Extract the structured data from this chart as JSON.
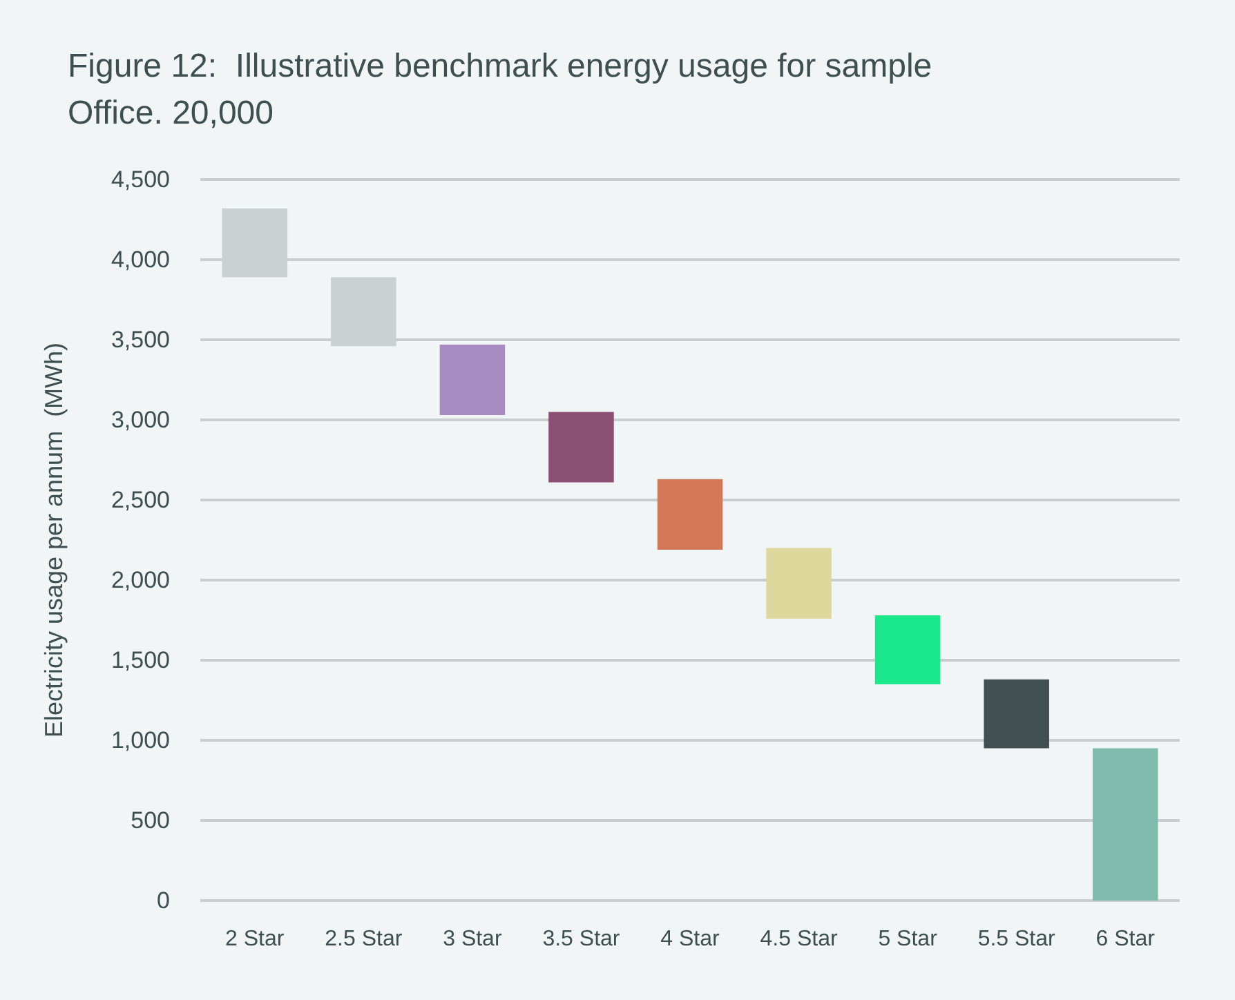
{
  "chart_data": {
    "type": "bar",
    "title": "Figure 12:  Illustrative benchmark energy usage for sample Office. 20,000",
    "ylabel": "Electricity usage per annum  (MWh)",
    "categories": [
      "2 Star",
      "2.5 Star",
      "3 Star",
      "3.5 Star",
      "4 Star",
      "4.5 Star",
      "5 Star",
      "5.5 Star",
      "6 Star"
    ],
    "base": [
      3890,
      3460,
      3030,
      2610,
      2190,
      1760,
      1350,
      950,
      0
    ],
    "values": [
      430,
      430,
      440,
      440,
      440,
      440,
      430,
      430,
      950
    ],
    "colors": [
      "#c9d1d1",
      "#c9d1d1",
      "#a88bc0",
      "#8a4f72",
      "#d27757",
      "#ddd89c",
      "#1ae88a",
      "#414f51",
      "#80bcad"
    ],
    "ylim": [
      0,
      4500
    ],
    "yticks": [
      0,
      500,
      {
        "value": 1000,
        "label": "1,000"
      },
      {
        "value": 1500,
        "label": "1,500"
      },
      {
        "value": 2000,
        "label": "2,000"
      },
      {
        "value": 2500,
        "label": "2,500"
      },
      {
        "value": 3000,
        "label": "3,000"
      },
      {
        "value": 3500,
        "label": "3,500"
      },
      {
        "value": 4000,
        "label": "4,000"
      },
      {
        "value": 4500,
        "label": "4,500"
      }
    ],
    "grid": "y"
  }
}
